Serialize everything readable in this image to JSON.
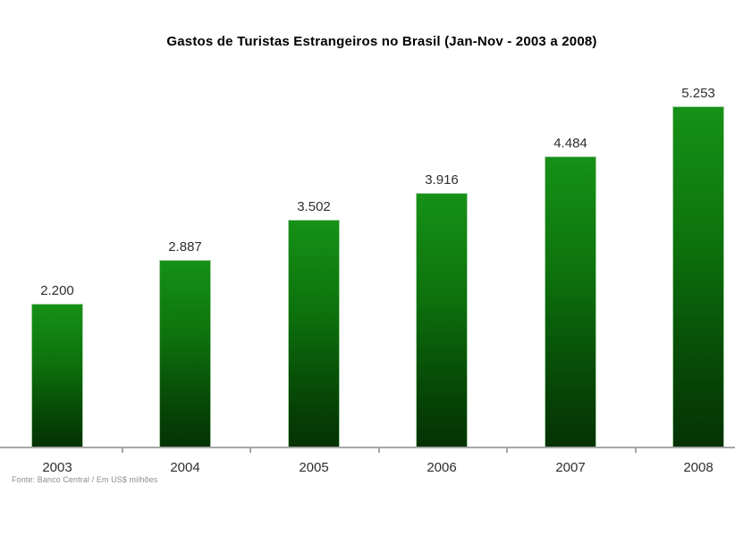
{
  "chart_data": {
    "type": "bar",
    "title": "Gastos de Turistas Estrangeiros no Brasil (Jan-Nov - 2003 a 2008)",
    "categories": [
      "2003",
      "2004",
      "2005",
      "2006",
      "2007",
      "2008"
    ],
    "values": [
      2200,
      2887,
      3502,
      3916,
      4484,
      5253
    ],
    "value_labels": [
      "2.200",
      "2.887",
      "3.502",
      "3.916",
      "4.484",
      "5.253"
    ],
    "series_name": "Gastos de turistas estrangeiros",
    "xlabel": "",
    "ylabel": "",
    "unit": "US$ milhões",
    "ylim": [
      0,
      5600
    ],
    "grid": false,
    "legend": "none",
    "y_axis_visible": false,
    "bar_color_top": "#169116",
    "bar_color_bottom": "#053205",
    "axis_line_color": "#a6a6a6",
    "label_color": "#2e2e2e",
    "title_color": "#000000",
    "background_color": "#ffffff",
    "source_note": "Fonte: Banco Central / Em US$ milhões"
  }
}
